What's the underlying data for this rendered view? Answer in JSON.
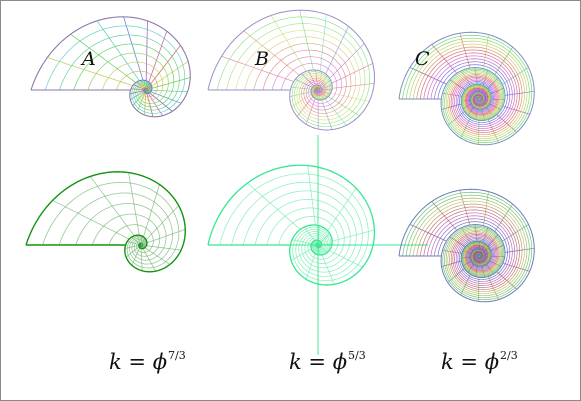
{
  "panels": [
    {
      "label": "A"
    },
    {
      "label": "B"
    },
    {
      "label": "C"
    }
  ],
  "formulas": [
    {
      "var": "k",
      "eq": "=",
      "base": "ϕ",
      "exp": "7/3"
    },
    {
      "var": "k",
      "eq": "=",
      "base": "ϕ",
      "exp": "5/3"
    },
    {
      "var": "k",
      "eq": "=",
      "base": "ϕ",
      "exp": "2/3"
    }
  ],
  "colors": {
    "shell_A_outline": "#129412",
    "shell_B_outline": "#33e88f",
    "shell_C_outline": "#6b7bb8",
    "frame": "#8a8a8a"
  }
}
